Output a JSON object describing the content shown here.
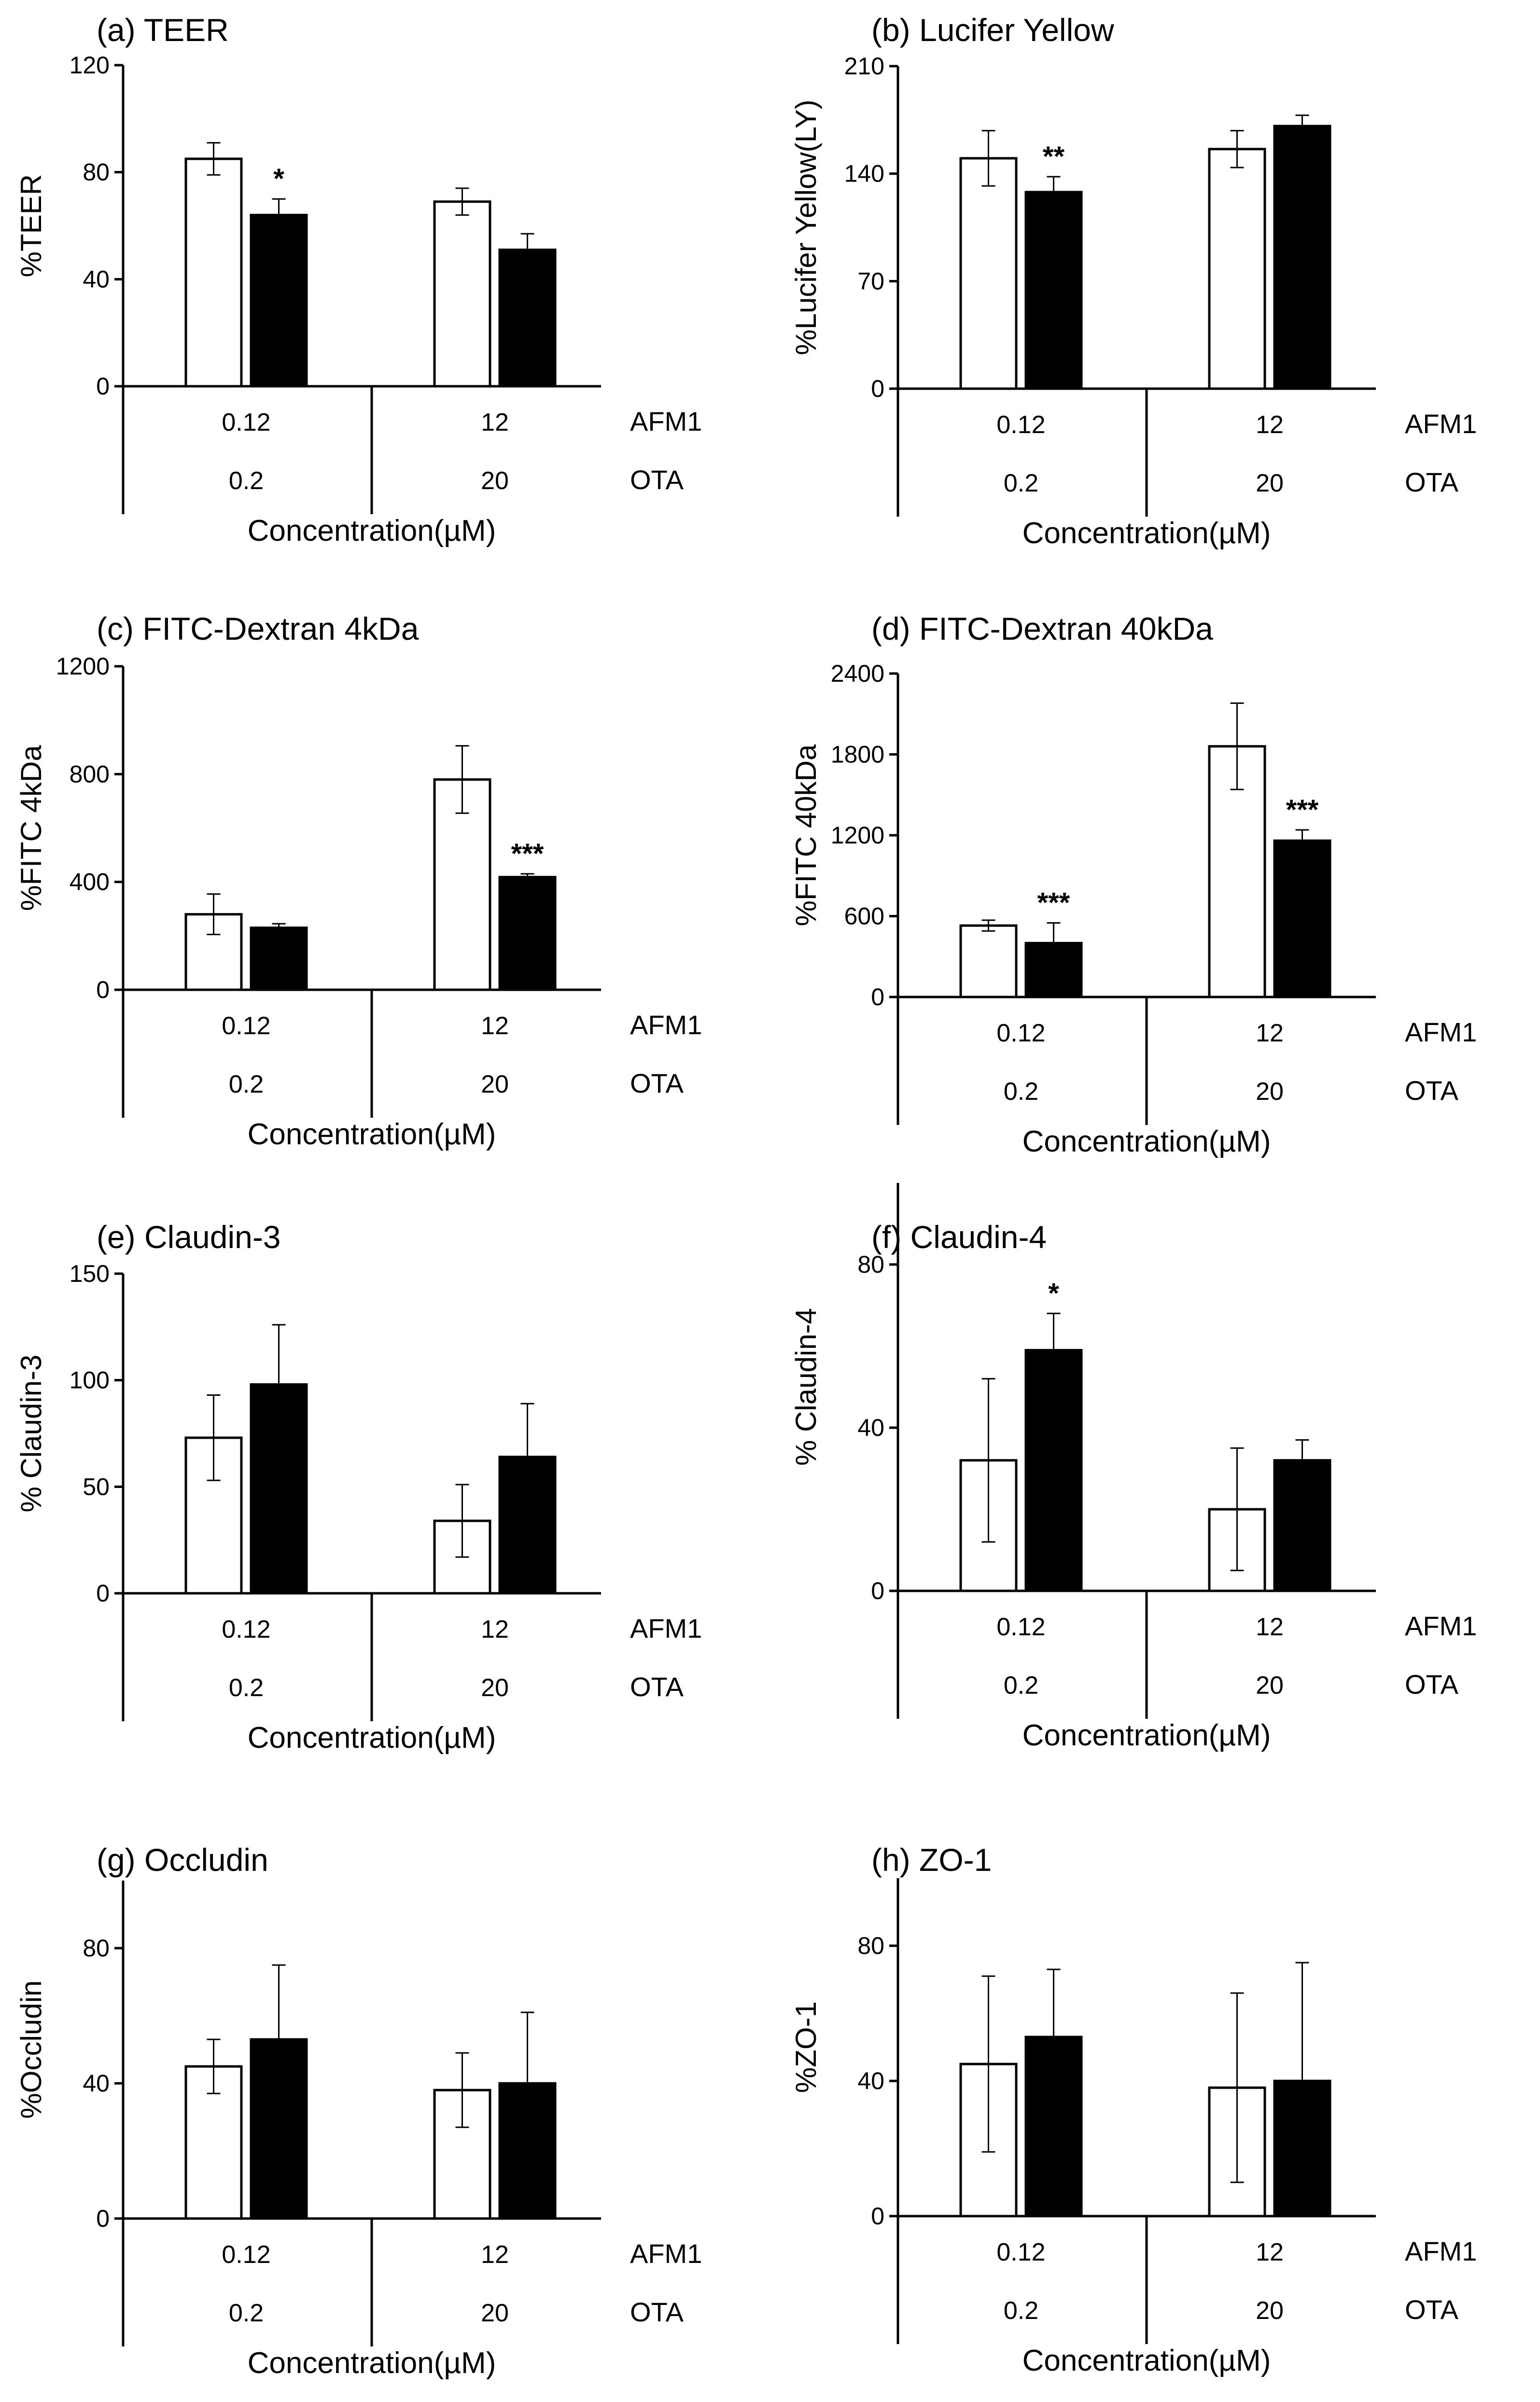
{
  "colors": {
    "ota_alone_bar": "#ffffff",
    "combination_bar": "#000000",
    "outline": "#000000"
  },
  "chart_data": [
    {
      "type": "bar",
      "panel": "a",
      "title": "(a) TEER",
      "ylabel": "%TEER",
      "xlabel": "Concentration(µM)",
      "ylim": [
        0,
        120
      ],
      "yticks": [
        "0",
        "40",
        "80",
        "120"
      ],
      "categories": [
        {
          "afm1": "0.12",
          "ota": "0.2",
          "values": [
            85,
            64
          ],
          "errors": [
            6,
            6
          ],
          "sig": [
            "",
            "*"
          ]
        },
        {
          "afm1": "12",
          "ota": "20",
          "values": [
            69,
            51
          ],
          "errors": [
            5,
            6
          ],
          "sig": [
            "",
            ""
          ]
        }
      ],
      "row_labels": [
        "AFM1",
        "OTA"
      ]
    },
    {
      "type": "bar",
      "panel": "b",
      "title": "(b) Lucifer Yellow",
      "ylabel": "%Lucifer Yellow(LY)",
      "xlabel": "Concentration(µM)",
      "ylim": [
        0,
        210
      ],
      "yticks": [
        "0",
        "70",
        "140",
        "210"
      ],
      "categories": [
        {
          "afm1": "0.12",
          "ota": "0.2",
          "values": [
            150,
            128
          ],
          "errors": [
            18,
            10
          ],
          "sig": [
            "",
            "**"
          ]
        },
        {
          "afm1": "12",
          "ota": "20",
          "values": [
            156,
            171
          ],
          "errors": [
            12,
            7
          ],
          "sig": [
            "",
            ""
          ]
        }
      ],
      "row_labels": [
        "AFM1",
        "OTA"
      ]
    },
    {
      "type": "bar",
      "panel": "c",
      "title": "(c) FITC-Dextran 4kDa",
      "ylabel": "%FITC 4kDa",
      "xlabel": "Concentration(µM)",
      "ylim": [
        0,
        1200
      ],
      "yticks": [
        "0",
        "400",
        "800",
        "1200"
      ],
      "categories": [
        {
          "afm1": "0.12",
          "ota": "0.2",
          "values": [
            280,
            230
          ],
          "errors": [
            75,
            15
          ],
          "sig": [
            "",
            ""
          ]
        },
        {
          "afm1": "12",
          "ota": "20",
          "values": [
            780,
            418
          ],
          "errors": [
            125,
            12
          ],
          "sig": [
            "",
            "***"
          ]
        }
      ],
      "row_labels": [
        "AFM1",
        "OTA"
      ]
    },
    {
      "type": "bar",
      "panel": "d",
      "title": "(d) FITC-Dextran 40kDa",
      "ylabel": "%FITC 40kDa",
      "xlabel": "Concentration(µM)",
      "ylim": [
        0,
        2400
      ],
      "yticks": [
        "0",
        "600",
        "1200",
        "1800",
        "2400"
      ],
      "categories": [
        {
          "afm1": "0.12",
          "ota": "0.2",
          "values": [
            530,
            400
          ],
          "errors": [
            40,
            150
          ],
          "sig": [
            "",
            "***"
          ]
        },
        {
          "afm1": "12",
          "ota": "20",
          "values": [
            1860,
            1160
          ],
          "errors": [
            320,
            80
          ],
          "sig": [
            "",
            "***"
          ]
        }
      ],
      "row_labels": [
        "AFM1",
        "OTA"
      ]
    },
    {
      "type": "bar",
      "panel": "e",
      "title": "(e) Claudin-3",
      "ylabel": "% Claudin-3",
      "xlabel": "Concentration(µM)",
      "ylim": [
        0,
        150
      ],
      "yticks": [
        "0",
        "50",
        "100",
        "150"
      ],
      "categories": [
        {
          "afm1": "0.12",
          "ota": "0.2",
          "values": [
            73,
            98
          ],
          "errors": [
            20,
            28
          ],
          "sig": [
            "",
            ""
          ]
        },
        {
          "afm1": "12",
          "ota": "20",
          "values": [
            34,
            64
          ],
          "errors": [
            17,
            25
          ],
          "sig": [
            "",
            ""
          ]
        }
      ],
      "row_labels": [
        "AFM1",
        "OTA"
      ]
    },
    {
      "type": "bar",
      "panel": "f",
      "title": "(f) Claudin-4",
      "ylabel": "% Claudin-4",
      "xlabel": "Concentration(µM)",
      "ylim": [
        0,
        100
      ],
      "yticks": [
        "0",
        "40",
        "80"
      ],
      "categories": [
        {
          "afm1": "0.12",
          "ota": "0.2",
          "values": [
            32,
            59
          ],
          "errors": [
            20,
            9
          ],
          "sig": [
            "",
            "*"
          ]
        },
        {
          "afm1": "12",
          "ota": "20",
          "values": [
            20,
            32
          ],
          "errors": [
            15,
            5
          ],
          "sig": [
            "",
            ""
          ]
        }
      ],
      "row_labels": [
        "AFM1",
        "OTA"
      ]
    },
    {
      "type": "bar",
      "panel": "g",
      "title": "(g) Occludin",
      "ylabel": "%Occludin",
      "xlabel": "Concentration(µM)",
      "ylim": [
        0,
        100
      ],
      "yticks": [
        "0",
        "40",
        "80"
      ],
      "categories": [
        {
          "afm1": "0.12",
          "ota": "0.2",
          "values": [
            45,
            53
          ],
          "errors": [
            8,
            22
          ],
          "sig": [
            "",
            ""
          ]
        },
        {
          "afm1": "12",
          "ota": "20",
          "values": [
            38,
            40
          ],
          "errors": [
            11,
            21
          ],
          "sig": [
            "",
            ""
          ]
        }
      ],
      "row_labels": [
        "AFM1",
        "OTA"
      ]
    },
    {
      "type": "bar",
      "panel": "h",
      "title": "(h) ZO-1",
      "ylabel": "%ZO-1",
      "xlabel": "Concentration(µM)",
      "ylim": [
        0,
        100
      ],
      "yticks": [
        "0",
        "40",
        "80"
      ],
      "categories": [
        {
          "afm1": "0.12",
          "ota": "0.2",
          "values": [
            45,
            53
          ],
          "errors": [
            26,
            20
          ],
          "sig": [
            "",
            ""
          ]
        },
        {
          "afm1": "12",
          "ota": "20",
          "values": [
            38,
            40
          ],
          "errors": [
            28,
            35
          ],
          "sig": [
            "",
            ""
          ]
        }
      ],
      "row_labels": [
        "AFM1",
        "OTA"
      ]
    }
  ]
}
